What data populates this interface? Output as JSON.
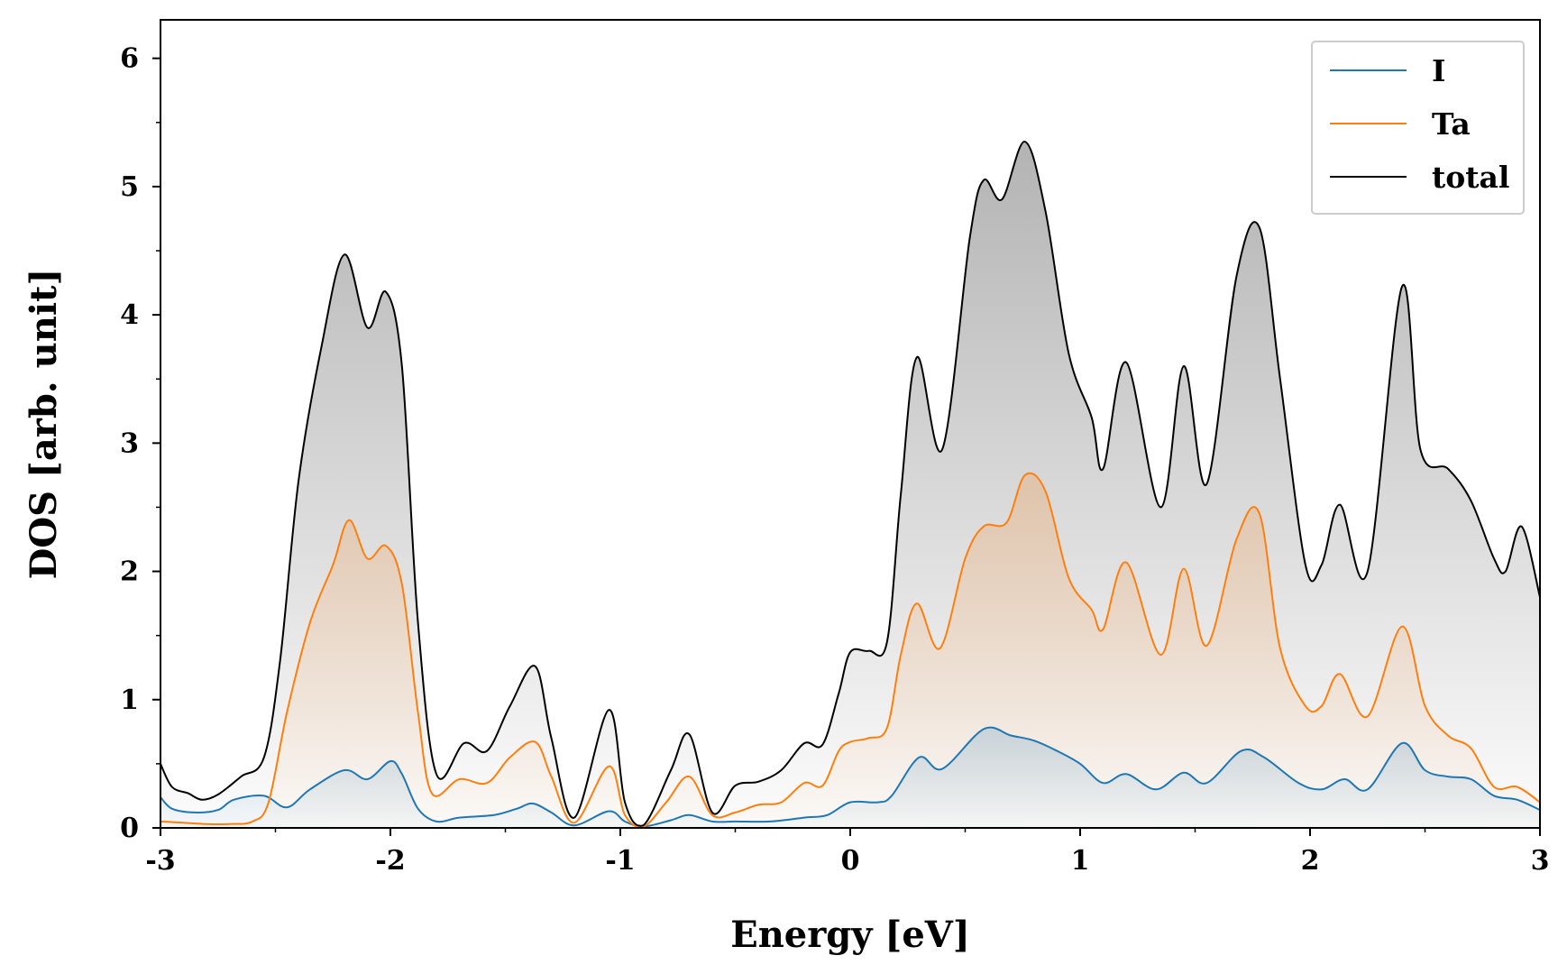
{
  "chart_data": {
    "type": "line",
    "title": "",
    "xlabel": "Energy [eV]",
    "ylabel": "DOS [arb. unit]",
    "xlim": [
      -3,
      3
    ],
    "ylim": [
      0,
      6.3
    ],
    "xticks": [
      -3,
      -2,
      -1,
      0,
      1,
      2,
      3
    ],
    "yticks": [
      0,
      1,
      2,
      3,
      4,
      5,
      6
    ],
    "xtick_labels": [
      "-3",
      "-2",
      "-1",
      "0",
      "1",
      "2",
      "3"
    ],
    "ytick_labels": [
      "0",
      "1",
      "2",
      "3",
      "4",
      "5",
      "6"
    ],
    "grid": false,
    "legend_position": "top-right",
    "series": [
      {
        "name": "I",
        "color": "#1f77b4",
        "points": [
          [
            -3,
            0.24
          ],
          [
            -2.95,
            0.15
          ],
          [
            -2.85,
            0.12
          ],
          [
            -2.75,
            0.14
          ],
          [
            -2.68,
            0.22
          ],
          [
            -2.55,
            0.25
          ],
          [
            -2.45,
            0.16
          ],
          [
            -2.35,
            0.3
          ],
          [
            -2.2,
            0.45
          ],
          [
            -2.1,
            0.38
          ],
          [
            -2.0,
            0.52
          ],
          [
            -1.95,
            0.42
          ],
          [
            -1.88,
            0.15
          ],
          [
            -1.8,
            0.05
          ],
          [
            -1.7,
            0.08
          ],
          [
            -1.55,
            0.1
          ],
          [
            -1.45,
            0.15
          ],
          [
            -1.38,
            0.19
          ],
          [
            -1.3,
            0.12
          ],
          [
            -1.2,
            0.02
          ],
          [
            -1.05,
            0.13
          ],
          [
            -0.98,
            0.05
          ],
          [
            -0.9,
            0.01
          ],
          [
            -0.78,
            0.06
          ],
          [
            -0.7,
            0.1
          ],
          [
            -0.6,
            0.05
          ],
          [
            -0.5,
            0.05
          ],
          [
            -0.35,
            0.05
          ],
          [
            -0.2,
            0.08
          ],
          [
            -0.1,
            0.1
          ],
          [
            0.0,
            0.2
          ],
          [
            0.12,
            0.2
          ],
          [
            0.18,
            0.25
          ],
          [
            0.3,
            0.55
          ],
          [
            0.4,
            0.46
          ],
          [
            0.58,
            0.77
          ],
          [
            0.7,
            0.72
          ],
          [
            0.8,
            0.68
          ],
          [
            0.9,
            0.6
          ],
          [
            1.0,
            0.5
          ],
          [
            1.1,
            0.35
          ],
          [
            1.2,
            0.42
          ],
          [
            1.33,
            0.3
          ],
          [
            1.45,
            0.43
          ],
          [
            1.55,
            0.35
          ],
          [
            1.7,
            0.6
          ],
          [
            1.8,
            0.55
          ],
          [
            1.95,
            0.35
          ],
          [
            2.05,
            0.3
          ],
          [
            2.15,
            0.38
          ],
          [
            2.25,
            0.3
          ],
          [
            2.4,
            0.66
          ],
          [
            2.5,
            0.45
          ],
          [
            2.6,
            0.4
          ],
          [
            2.7,
            0.38
          ],
          [
            2.8,
            0.25
          ],
          [
            2.9,
            0.22
          ],
          [
            3.0,
            0.14
          ]
        ]
      },
      {
        "name": "Ta",
        "color": "#ff7f0e",
        "points": [
          [
            -3,
            0.05
          ],
          [
            -2.9,
            0.04
          ],
          [
            -2.8,
            0.03
          ],
          [
            -2.7,
            0.03
          ],
          [
            -2.6,
            0.05
          ],
          [
            -2.53,
            0.2
          ],
          [
            -2.45,
            0.9
          ],
          [
            -2.35,
            1.6
          ],
          [
            -2.25,
            2.05
          ],
          [
            -2.18,
            2.4
          ],
          [
            -2.1,
            2.1
          ],
          [
            -2.02,
            2.2
          ],
          [
            -1.95,
            1.9
          ],
          [
            -1.88,
            0.9
          ],
          [
            -1.82,
            0.27
          ],
          [
            -1.7,
            0.38
          ],
          [
            -1.58,
            0.35
          ],
          [
            -1.48,
            0.55
          ],
          [
            -1.37,
            0.67
          ],
          [
            -1.3,
            0.4
          ],
          [
            -1.2,
            0.04
          ],
          [
            -1.05,
            0.48
          ],
          [
            -0.98,
            0.1
          ],
          [
            -0.9,
            0.01
          ],
          [
            -0.8,
            0.2
          ],
          [
            -0.7,
            0.4
          ],
          [
            -0.6,
            0.1
          ],
          [
            -0.5,
            0.12
          ],
          [
            -0.4,
            0.18
          ],
          [
            -0.3,
            0.2
          ],
          [
            -0.2,
            0.35
          ],
          [
            -0.12,
            0.33
          ],
          [
            -0.05,
            0.6
          ],
          [
            0.0,
            0.67
          ],
          [
            0.08,
            0.7
          ],
          [
            0.16,
            0.78
          ],
          [
            0.22,
            1.35
          ],
          [
            0.29,
            1.75
          ],
          [
            0.39,
            1.4
          ],
          [
            0.5,
            2.1
          ],
          [
            0.58,
            2.35
          ],
          [
            0.68,
            2.38
          ],
          [
            0.76,
            2.75
          ],
          [
            0.85,
            2.62
          ],
          [
            0.95,
            1.95
          ],
          [
            1.05,
            1.7
          ],
          [
            1.1,
            1.55
          ],
          [
            1.2,
            2.07
          ],
          [
            1.35,
            1.35
          ],
          [
            1.45,
            2.02
          ],
          [
            1.55,
            1.42
          ],
          [
            1.68,
            2.25
          ],
          [
            1.78,
            2.45
          ],
          [
            1.87,
            1.4
          ],
          [
            1.98,
            0.95
          ],
          [
            2.05,
            0.95
          ],
          [
            2.13,
            1.2
          ],
          [
            2.25,
            0.87
          ],
          [
            2.4,
            1.57
          ],
          [
            2.5,
            0.95
          ],
          [
            2.6,
            0.72
          ],
          [
            2.7,
            0.62
          ],
          [
            2.8,
            0.32
          ],
          [
            2.9,
            0.32
          ],
          [
            3.0,
            0.2
          ]
        ]
      },
      {
        "name": "total",
        "color": "#000000",
        "points": [
          [
            -3,
            0.5
          ],
          [
            -2.95,
            0.32
          ],
          [
            -2.88,
            0.27
          ],
          [
            -2.82,
            0.22
          ],
          [
            -2.75,
            0.26
          ],
          [
            -2.65,
            0.4
          ],
          [
            -2.55,
            0.55
          ],
          [
            -2.48,
            1.3
          ],
          [
            -2.4,
            2.7
          ],
          [
            -2.3,
            3.75
          ],
          [
            -2.2,
            4.47
          ],
          [
            -2.1,
            3.9
          ],
          [
            -2.02,
            4.18
          ],
          [
            -1.95,
            3.6
          ],
          [
            -1.88,
            1.6
          ],
          [
            -1.8,
            0.42
          ],
          [
            -1.68,
            0.66
          ],
          [
            -1.58,
            0.6
          ],
          [
            -1.48,
            0.95
          ],
          [
            -1.37,
            1.26
          ],
          [
            -1.3,
            0.7
          ],
          [
            -1.2,
            0.08
          ],
          [
            -1.05,
            0.92
          ],
          [
            -0.98,
            0.2
          ],
          [
            -0.9,
            0.02
          ],
          [
            -0.78,
            0.45
          ],
          [
            -0.7,
            0.73
          ],
          [
            -0.6,
            0.12
          ],
          [
            -0.5,
            0.33
          ],
          [
            -0.4,
            0.36
          ],
          [
            -0.3,
            0.45
          ],
          [
            -0.2,
            0.66
          ],
          [
            -0.12,
            0.65
          ],
          [
            -0.05,
            1.05
          ],
          [
            0.0,
            1.37
          ],
          [
            0.08,
            1.38
          ],
          [
            0.16,
            1.45
          ],
          [
            0.22,
            2.6
          ],
          [
            0.29,
            3.67
          ],
          [
            0.4,
            2.95
          ],
          [
            0.52,
            4.6
          ],
          [
            0.58,
            5.05
          ],
          [
            0.66,
            4.9
          ],
          [
            0.76,
            5.35
          ],
          [
            0.85,
            4.8
          ],
          [
            0.95,
            3.7
          ],
          [
            1.05,
            3.2
          ],
          [
            1.1,
            2.8
          ],
          [
            1.2,
            3.63
          ],
          [
            1.35,
            2.5
          ],
          [
            1.45,
            3.6
          ],
          [
            1.55,
            2.68
          ],
          [
            1.68,
            4.3
          ],
          [
            1.78,
            4.68
          ],
          [
            1.87,
            3.5
          ],
          [
            1.98,
            2.05
          ],
          [
            2.05,
            2.05
          ],
          [
            2.13,
            2.52
          ],
          [
            2.25,
            2.0
          ],
          [
            2.4,
            4.22
          ],
          [
            2.48,
            2.95
          ],
          [
            2.6,
            2.8
          ],
          [
            2.7,
            2.55
          ],
          [
            2.8,
            2.1
          ],
          [
            2.85,
            2.0
          ],
          [
            2.92,
            2.35
          ],
          [
            3.0,
            1.8
          ]
        ]
      }
    ]
  }
}
